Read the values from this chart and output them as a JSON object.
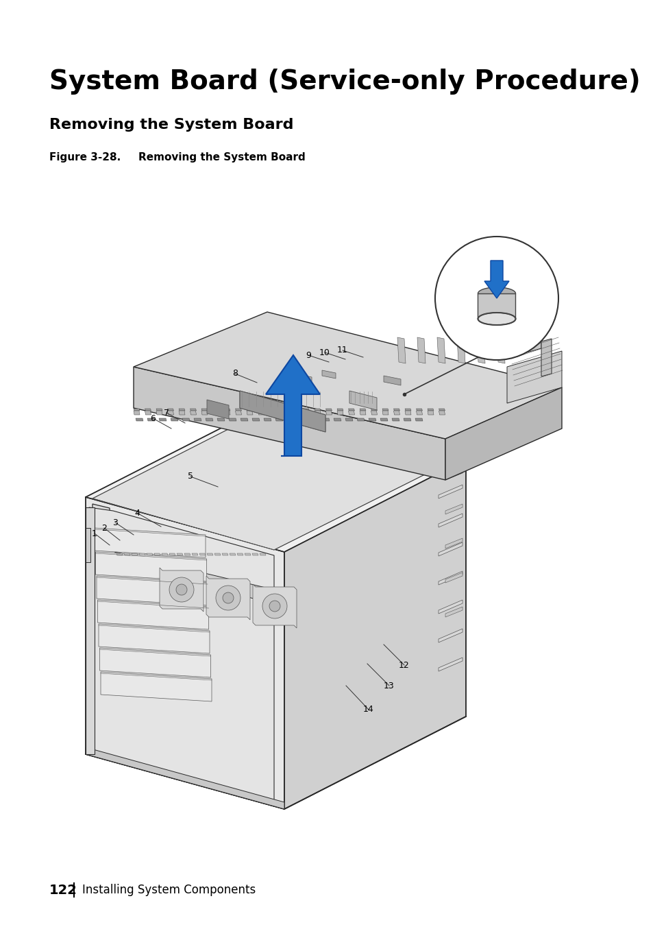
{
  "title": "System Board (Service-only Procedure)",
  "subtitle": "Removing the System Board",
  "figure_label": "Figure 3-28.   Removing the System Board",
  "footer_page": "122",
  "footer_separator": "|",
  "footer_text": "Installing System Components",
  "bg_color": "#ffffff",
  "title_fontsize": 28,
  "subtitle_fontsize": 16,
  "figure_label_fontsize": 11,
  "footer_fontsize": 14
}
